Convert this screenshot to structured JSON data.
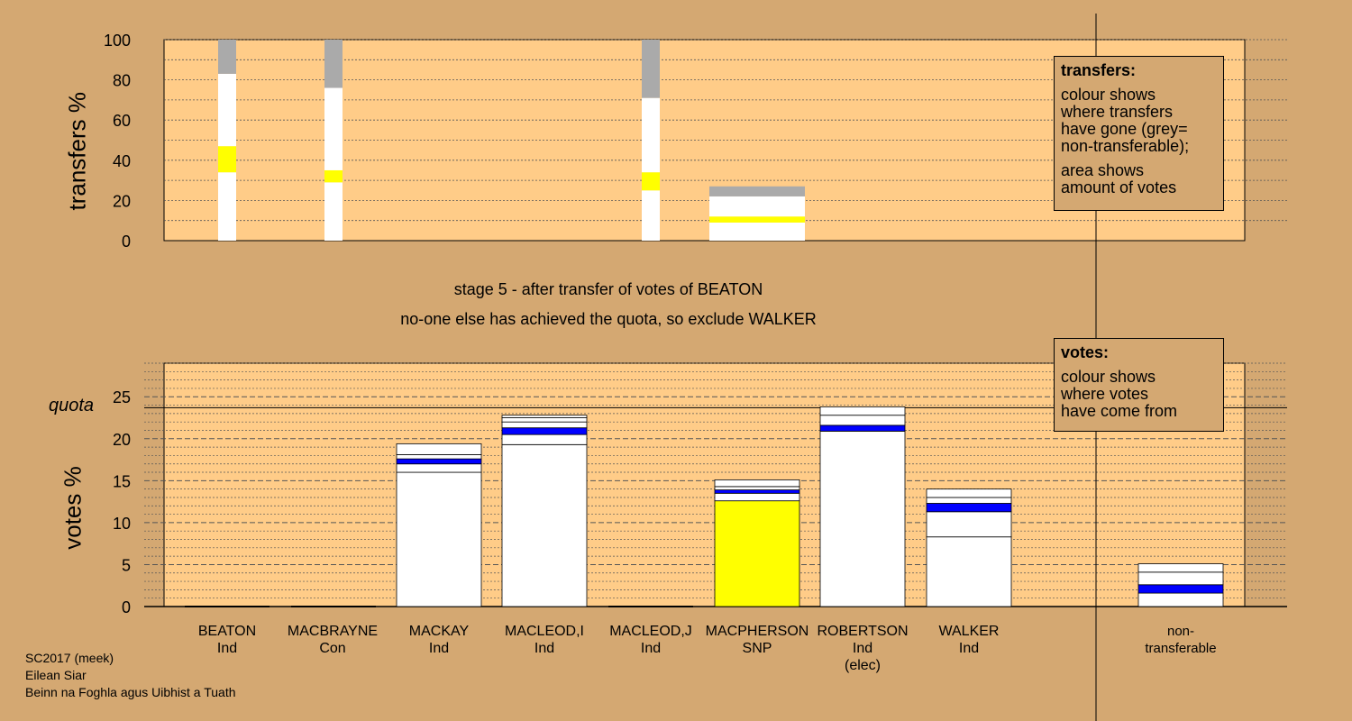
{
  "colors": {
    "background": "#d4a872",
    "plot_area": "#ffcc88",
    "ind": "#ffffff",
    "snp": "#ffff00",
    "con": "#0000ff",
    "non_transferable": "#aaaaaa"
  },
  "stage": {
    "line1": "stage 5 - after transfer of votes of BEATON",
    "line2": "no-one else has achieved the quota, so exclude WALKER"
  },
  "footer": {
    "line1": "SC2017 (meek)",
    "line2": "Eilean Siar",
    "line3": "Beinn na Foghla agus Uibhist a Tuath"
  },
  "legend_transfers": {
    "title": "transfers:",
    "text1_lines": [
      "colour shows",
      "where transfers",
      "have gone (grey=",
      "non-transferable);"
    ],
    "text2_lines": [
      "area shows",
      "amount of votes"
    ]
  },
  "legend_votes": {
    "title": "votes:",
    "text_lines": [
      "colour shows",
      "where votes",
      "have come from"
    ]
  },
  "candidates": [
    {
      "name": "BEATON",
      "party": "Ind",
      "extra": ""
    },
    {
      "name": "MACBRAYNE",
      "party": "Con",
      "extra": ""
    },
    {
      "name": "MACKAY",
      "party": "Ind",
      "extra": ""
    },
    {
      "name": "MACLEOD,I",
      "party": "Ind",
      "extra": ""
    },
    {
      "name": "MACLEOD,J",
      "party": "Ind",
      "extra": ""
    },
    {
      "name": "MACPHERSON",
      "party": "SNP",
      "extra": ""
    },
    {
      "name": "ROBERTSON",
      "party": "Ind",
      "extra": "(elec)"
    },
    {
      "name": "WALKER",
      "party": "Ind",
      "extra": ""
    },
    {
      "name": "non-",
      "party": "transferable",
      "extra": ""
    }
  ],
  "chart_data": [
    {
      "type": "bar",
      "ylabel": "transfers %",
      "ylim": [
        0,
        100
      ],
      "yticks": [
        0,
        20,
        40,
        60,
        80,
        100
      ],
      "bars": [
        {
          "column": "BEATON",
          "segments": [
            {
              "from": 0,
              "to": 34,
              "color": "ind"
            },
            {
              "from": 34,
              "to": 47,
              "color": "snp"
            },
            {
              "from": 47,
              "to": 83,
              "color": "ind"
            },
            {
              "from": 83,
              "to": 100,
              "color": "non_transferable"
            }
          ]
        },
        {
          "column": "MACBRAYNE",
          "segments": [
            {
              "from": 0,
              "to": 29,
              "color": "ind"
            },
            {
              "from": 29,
              "to": 35,
              "color": "snp"
            },
            {
              "from": 35,
              "to": 76,
              "color": "ind"
            },
            {
              "from": 76,
              "to": 100,
              "color": "non_transferable"
            }
          ]
        },
        {
          "column": "MACLEOD,J",
          "segments": [
            {
              "from": 0,
              "to": 25,
              "color": "ind"
            },
            {
              "from": 25,
              "to": 34,
              "color": "snp"
            },
            {
              "from": 34,
              "to": 71,
              "color": "ind"
            },
            {
              "from": 71,
              "to": 100,
              "color": "non_transferable"
            }
          ]
        },
        {
          "column": "MACPHERSON",
          "wide": true,
          "segments": [
            {
              "from": 0,
              "to": 9,
              "color": "ind"
            },
            {
              "from": 9,
              "to": 12,
              "color": "snp"
            },
            {
              "from": 12,
              "to": 22,
              "color": "ind"
            },
            {
              "from": 22,
              "to": 27,
              "color": "non_transferable"
            }
          ]
        }
      ]
    },
    {
      "type": "bar",
      "ylabel": "votes %",
      "ylim": [
        0,
        29
      ],
      "yticks": [
        0,
        5,
        10,
        15,
        20,
        25
      ],
      "quota": 23.7,
      "quota_label": "quota",
      "bars": [
        {
          "column": "BEATON",
          "total": 0,
          "segments": []
        },
        {
          "column": "MACBRAYNE",
          "total": 0,
          "segments": []
        },
        {
          "column": "MACKAY",
          "total": 19.4,
          "segments": [
            {
              "from": 0,
              "to": 16.0,
              "color": "ind"
            },
            {
              "from": 16.0,
              "to": 17.0,
              "color": "ind"
            },
            {
              "from": 17.0,
              "to": 17.6,
              "color": "con"
            },
            {
              "from": 17.6,
              "to": 18.1,
              "color": "ind"
            },
            {
              "from": 18.1,
              "to": 19.4,
              "color": "ind"
            }
          ]
        },
        {
          "column": "MACLEOD,I",
          "total": 22.8,
          "segments": [
            {
              "from": 0,
              "to": 19.3,
              "color": "ind"
            },
            {
              "from": 19.3,
              "to": 20.5,
              "color": "ind"
            },
            {
              "from": 20.5,
              "to": 21.3,
              "color": "con"
            },
            {
              "from": 21.3,
              "to": 22.0,
              "color": "ind"
            },
            {
              "from": 22.0,
              "to": 22.5,
              "color": "ind"
            },
            {
              "from": 22.5,
              "to": 22.8,
              "color": "ind"
            }
          ]
        },
        {
          "column": "MACLEOD,J",
          "total": 0,
          "segments": []
        },
        {
          "column": "MACPHERSON",
          "total": 15.1,
          "segments": [
            {
              "from": 0,
              "to": 12.6,
              "color": "snp"
            },
            {
              "from": 12.6,
              "to": 13.5,
              "color": "ind"
            },
            {
              "from": 13.5,
              "to": 13.9,
              "color": "con"
            },
            {
              "from": 13.9,
              "to": 14.3,
              "color": "ind"
            },
            {
              "from": 14.3,
              "to": 15.1,
              "color": "ind"
            }
          ]
        },
        {
          "column": "ROBERTSON",
          "total": 23.8,
          "segments": [
            {
              "from": 0,
              "to": 20.9,
              "color": "ind"
            },
            {
              "from": 20.9,
              "to": 21.6,
              "color": "con"
            },
            {
              "from": 21.6,
              "to": 22.8,
              "color": "ind"
            },
            {
              "from": 22.8,
              "to": 23.8,
              "color": "ind"
            }
          ]
        },
        {
          "column": "WALKER",
          "total": 14.0,
          "segments": [
            {
              "from": 0,
              "to": 8.3,
              "color": "ind"
            },
            {
              "from": 8.3,
              "to": 11.3,
              "color": "ind"
            },
            {
              "from": 11.3,
              "to": 12.3,
              "color": "con"
            },
            {
              "from": 12.3,
              "to": 13.0,
              "color": "ind"
            },
            {
              "from": 13.0,
              "to": 14.0,
              "color": "ind"
            }
          ]
        },
        {
          "column": "non-transferable",
          "total": 5.1,
          "segments": [
            {
              "from": 0,
              "to": 1.6,
              "color": "ind"
            },
            {
              "from": 1.6,
              "to": 2.6,
              "color": "con"
            },
            {
              "from": 2.6,
              "to": 4.1,
              "color": "ind"
            },
            {
              "from": 4.1,
              "to": 5.1,
              "color": "ind"
            }
          ]
        }
      ]
    }
  ]
}
